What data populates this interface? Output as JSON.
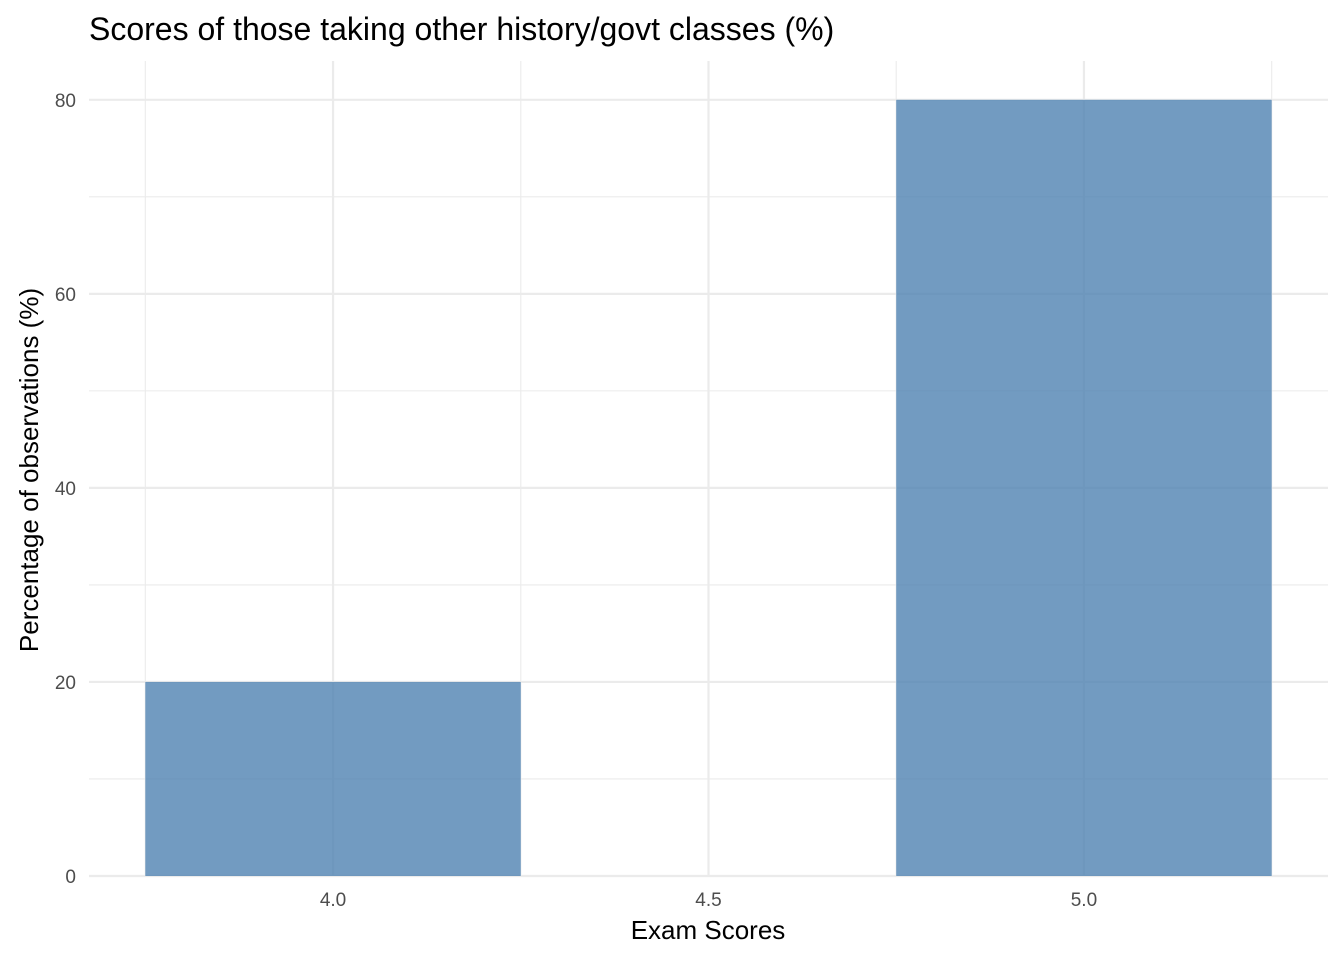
{
  "chart_data": {
    "type": "bar",
    "title": "Scores of those taking other history/govt classes (%)",
    "xlabel": "Exam Scores",
    "ylabel": "Percentage of observations (%)",
    "bars": [
      {
        "x": 4.0,
        "value": 20
      },
      {
        "x": 5.0,
        "value": 80
      }
    ],
    "bar_width": 0.5,
    "xlim": [
      3.675,
      5.325
    ],
    "ylim": [
      0,
      84
    ],
    "x_ticks": [
      4.0,
      4.5,
      5.0
    ],
    "x_tick_labels": [
      "4.0",
      "4.5",
      "5.0"
    ],
    "y_ticks": [
      0,
      20,
      40,
      60,
      80
    ],
    "y_tick_labels": [
      "0",
      "20",
      "40",
      "60",
      "80"
    ],
    "bar_color": "#4a7fb0",
    "grid": true,
    "legend": "none"
  }
}
